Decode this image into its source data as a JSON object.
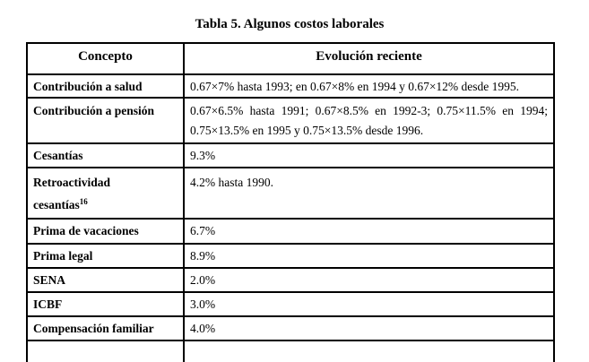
{
  "caption": "Tabla 5. Algunos costos laborales",
  "table": {
    "headers": {
      "concepto": "Concepto",
      "evolucion": "Evolución reciente"
    },
    "rows": [
      {
        "concepto": "Contribución a salud",
        "evolucion": "0.67×7% hasta 1993; en 0.67×8% en 1994 y 0.67×12% desde 1995."
      },
      {
        "concepto": "Contribución a pensión",
        "evolucion": "0.67×6.5% hasta 1991; 0.67×8.5% en 1992-3; 0.75×11.5% en 1994; 0.75×13.5% en 1995 y 0.75×13.5% desde 1996."
      },
      {
        "concepto": "Cesantías",
        "evolucion": "9.3%"
      },
      {
        "concepto": "Retroactividad cesantías",
        "footnote": "16",
        "evolucion": "4.2% hasta 1990."
      },
      {
        "concepto": "Prima de vacaciones",
        "evolucion": "6.7%"
      },
      {
        "concepto": "Prima legal",
        "evolucion": "8.9%"
      },
      {
        "concepto": "SENA",
        "evolucion": "2.0%"
      },
      {
        "concepto": "ICBF",
        "evolucion": "3.0%"
      },
      {
        "concepto": "Compensación familiar",
        "evolucion": "4.0%"
      }
    ]
  },
  "colors": {
    "text": "#000000",
    "border": "#000000",
    "background": "#ffffff"
  }
}
